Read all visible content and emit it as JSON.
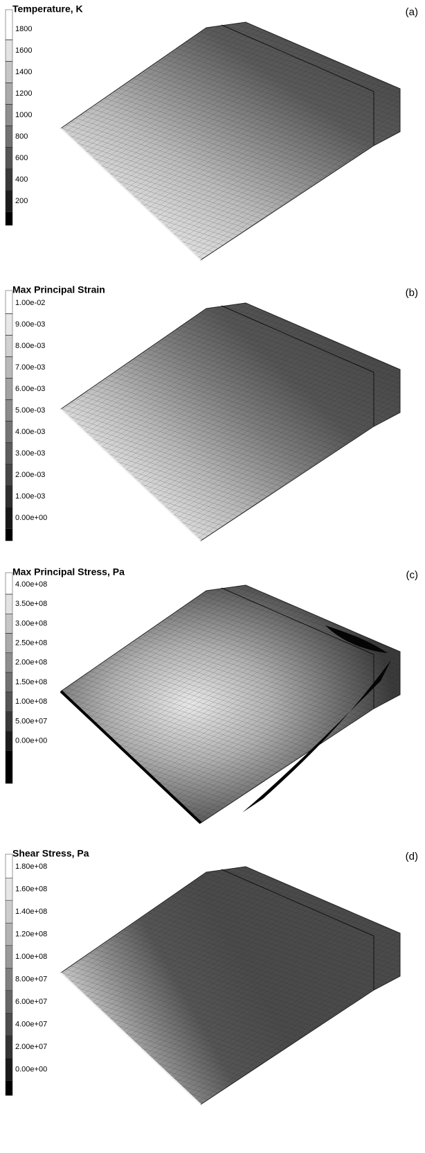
{
  "panels": [
    {
      "label": "(a)",
      "legend_title": "Temperature, K",
      "legend_labels": [
        "1800",
        "1600",
        "1400",
        "1200",
        "1000",
        "800",
        "600",
        "400",
        "200"
      ]
    },
    {
      "label": "(b)",
      "legend_title": "Max Principal Strain",
      "legend_labels": [
        "1.00e-02",
        "9.00e-03",
        "8.00e-03",
        "7.00e-03",
        "6.00e-03",
        "5.00e-03",
        "4.00e-03",
        "3.00e-03",
        "2.00e-03",
        "1.00e-03",
        "0.00e+00"
      ]
    },
    {
      "label": "(c)",
      "legend_title": "Max Principal Stress, Pa",
      "legend_labels": [
        "4.00e+08",
        "3.50e+08",
        "3.00e+08",
        "2.50e+08",
        "2.00e+08",
        "1.50e+08",
        "1.00e+08",
        "5.00e+07",
        "0.00e+00"
      ]
    },
    {
      "label": "(d)",
      "legend_title": "Shear Stress, Pa",
      "legend_labels": [
        "1.80e+08",
        "1.60e+08",
        "1.40e+08",
        "1.20e+08",
        "1.00e+08",
        "8.00e+07",
        "6.00e+07",
        "4.00e+07",
        "2.00e+07",
        "0.00e+00"
      ]
    }
  ]
}
